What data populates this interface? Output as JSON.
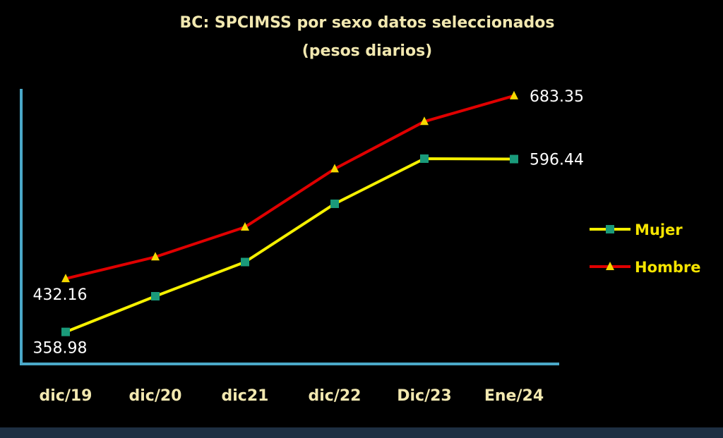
{
  "chart_data": {
    "type": "line",
    "title": "BC: SPCIMSS por sexo datos seleccionados",
    "subtitle": "(pesos diarios)",
    "categories": [
      "dic/19",
      "dic/20",
      "dic21",
      "dic/22",
      "Dic/23",
      "Ene/24"
    ],
    "series": [
      {
        "name": "Mujer",
        "color": "#f5f000",
        "marker": "square",
        "marker_color": "#1a9a7a",
        "values": [
          358.98,
          408,
          455,
          535,
          597,
          596.44
        ],
        "labels": [
          "358.98",
          "",
          "",
          "",
          "",
          "596.44"
        ]
      },
      {
        "name": "Hombre",
        "color": "#e00000",
        "marker": "triangle",
        "marker_color": "#f5d800",
        "values": [
          432.16,
          462,
          503,
          583,
          648,
          683.35
        ],
        "labels": [
          "432.16",
          "",
          "",
          "",
          "",
          "683.35"
        ]
      }
    ],
    "ylim": [
      315,
      720
    ],
    "grid": false,
    "legend_position": "right",
    "axis_color": "#4aa8c8"
  }
}
